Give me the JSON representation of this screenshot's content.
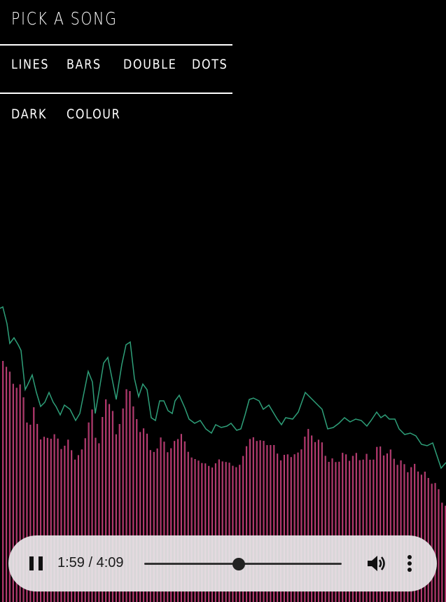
{
  "menu": {
    "title": "PICK A SONG",
    "modes": [
      "LINES",
      "BARS",
      "DOUBLE",
      "DOTS"
    ],
    "themes": [
      "DARK",
      "COLOUR"
    ]
  },
  "visualizer": {
    "line_color": "#2e9f79",
    "bar_color_left": "#d11a63",
    "bar_color_right": "#c26a8e",
    "background": "#000000"
  },
  "player": {
    "play_state_icon": "pause-icon",
    "time_display": "1:59 / 4:09",
    "progress": 0.478,
    "volume_icon": "volume-icon",
    "more_icon": "more-options-icon"
  }
}
